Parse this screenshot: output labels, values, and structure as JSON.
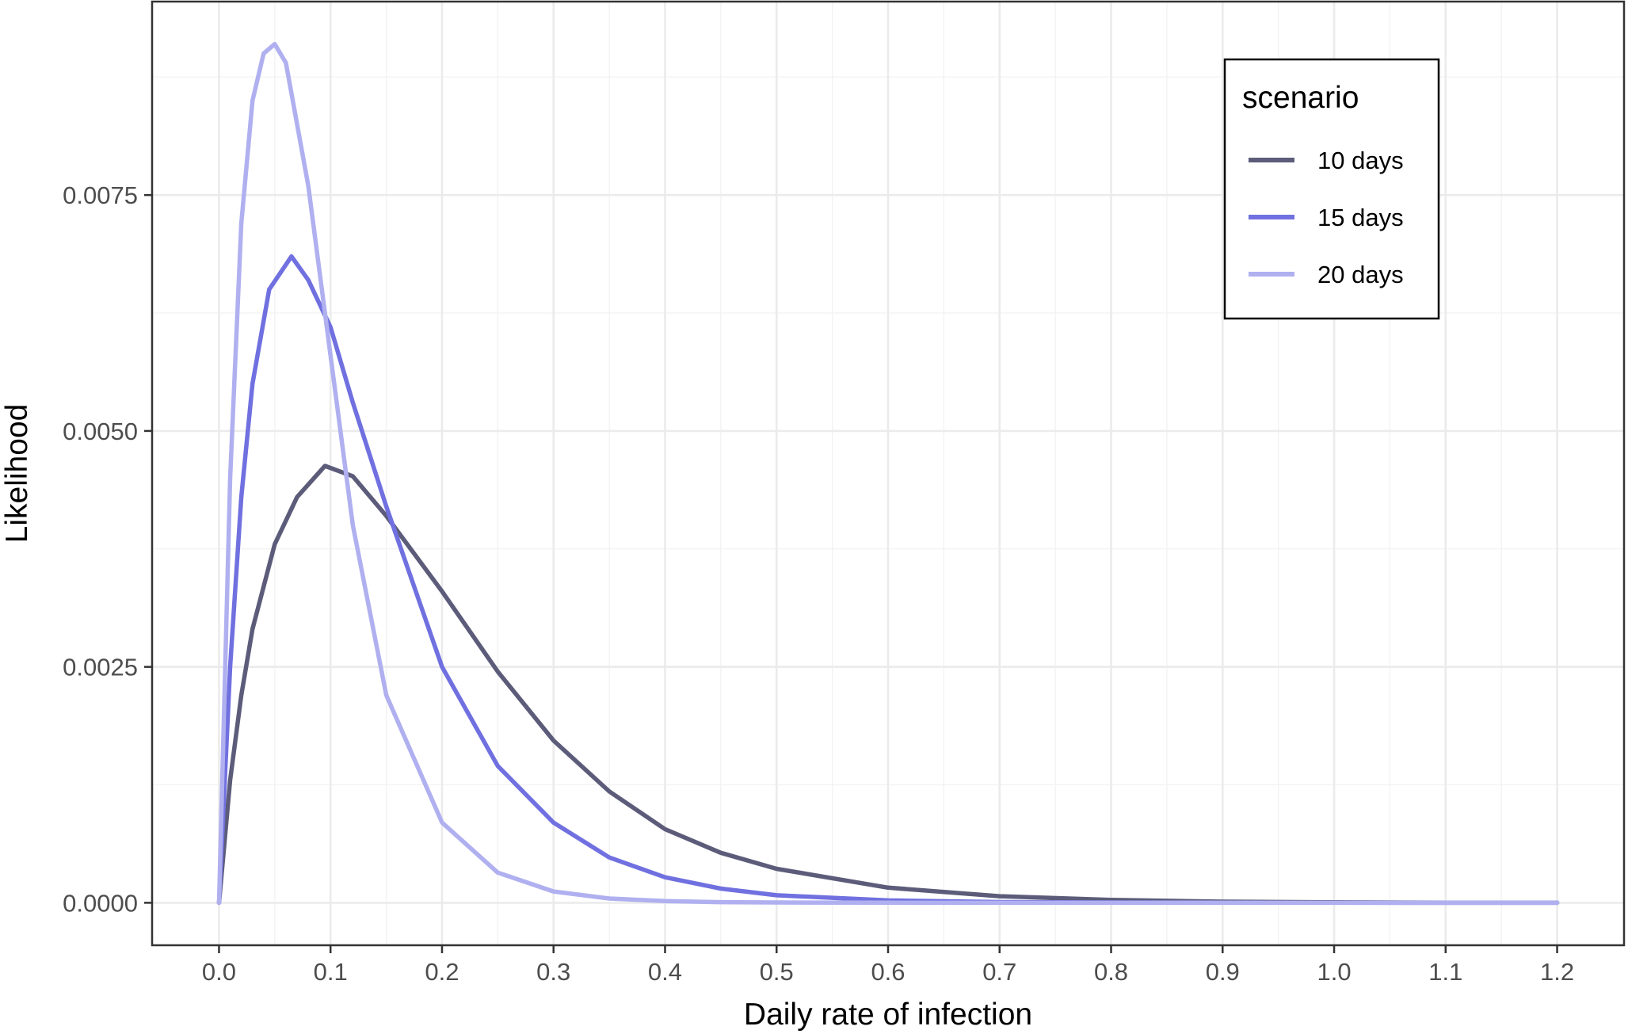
{
  "chart_data": {
    "type": "line",
    "title": "",
    "xlabel": "Daily rate of infection",
    "ylabel": "Likelihood",
    "xlim": [
      -0.06,
      1.26
    ],
    "ylim": [
      -0.00045,
      0.00955
    ],
    "x_ticks": [
      0.0,
      0.1,
      0.2,
      0.3,
      0.4,
      0.5,
      0.6,
      0.7,
      0.8,
      0.9,
      1.0,
      1.1,
      1.2
    ],
    "x_tick_labels": [
      "0.0",
      "0.1",
      "0.2",
      "0.3",
      "0.4",
      "0.5",
      "0.6",
      "0.7",
      "0.8",
      "0.9",
      "1.0",
      "1.1",
      "1.2"
    ],
    "y_ticks": [
      0.0,
      0.0025,
      0.005,
      0.0075
    ],
    "y_tick_labels": [
      "0.0000",
      "0.0025",
      "0.0050",
      "0.0075"
    ],
    "grid": true,
    "legend": {
      "title": "scenario",
      "position": "top-right"
    },
    "series": [
      {
        "name": "10 days",
        "color": "#5c5c7a",
        "x": [
          0.0,
          0.01,
          0.02,
          0.03,
          0.05,
          0.07,
          0.095,
          0.12,
          0.15,
          0.2,
          0.25,
          0.3,
          0.35,
          0.4,
          0.45,
          0.5,
          0.6,
          0.7,
          0.8,
          0.9,
          1.0,
          1.1,
          1.2
        ],
        "y": [
          0.0,
          0.0013,
          0.0022,
          0.0029,
          0.0038,
          0.0043,
          0.00463,
          0.00452,
          0.0041,
          0.0033,
          0.00245,
          0.00172,
          0.00118,
          0.00078,
          0.00053,
          0.00036,
          0.00016,
          7e-05,
          3e-05,
          1.2e-05,
          5e-06,
          2e-06,
          1e-06
        ]
      },
      {
        "name": "15 days",
        "color": "#7070e0",
        "x": [
          0.0,
          0.01,
          0.02,
          0.03,
          0.045,
          0.065,
          0.08,
          0.1,
          0.12,
          0.15,
          0.2,
          0.25,
          0.3,
          0.35,
          0.4,
          0.45,
          0.5,
          0.6,
          0.7,
          0.8,
          1.0,
          1.2
        ],
        "y": [
          0.0,
          0.0025,
          0.0043,
          0.0055,
          0.0065,
          0.00685,
          0.0066,
          0.0061,
          0.0053,
          0.0042,
          0.0025,
          0.00145,
          0.00085,
          0.00048,
          0.00027,
          0.00015,
          8e-05,
          2.5e-05,
          8e-06,
          3e-06,
          5e-07,
          0.0
        ]
      },
      {
        "name": "20 days",
        "color": "#b0b0f0",
        "x": [
          0.0,
          0.01,
          0.02,
          0.03,
          0.04,
          0.05,
          0.06,
          0.08,
          0.1,
          0.12,
          0.15,
          0.2,
          0.25,
          0.3,
          0.35,
          0.4,
          0.45,
          0.5,
          0.6,
          0.7,
          0.8,
          0.9,
          1.0,
          1.2
        ],
        "y": [
          0.0,
          0.0045,
          0.0072,
          0.0085,
          0.009,
          0.0091,
          0.0089,
          0.0076,
          0.0058,
          0.004,
          0.0022,
          0.00085,
          0.00032,
          0.00012,
          4.5e-05,
          1.8e-05,
          7e-06,
          3e-06,
          5e-07,
          1e-07,
          0.0,
          0.0,
          0.0,
          0.0
        ]
      }
    ]
  }
}
